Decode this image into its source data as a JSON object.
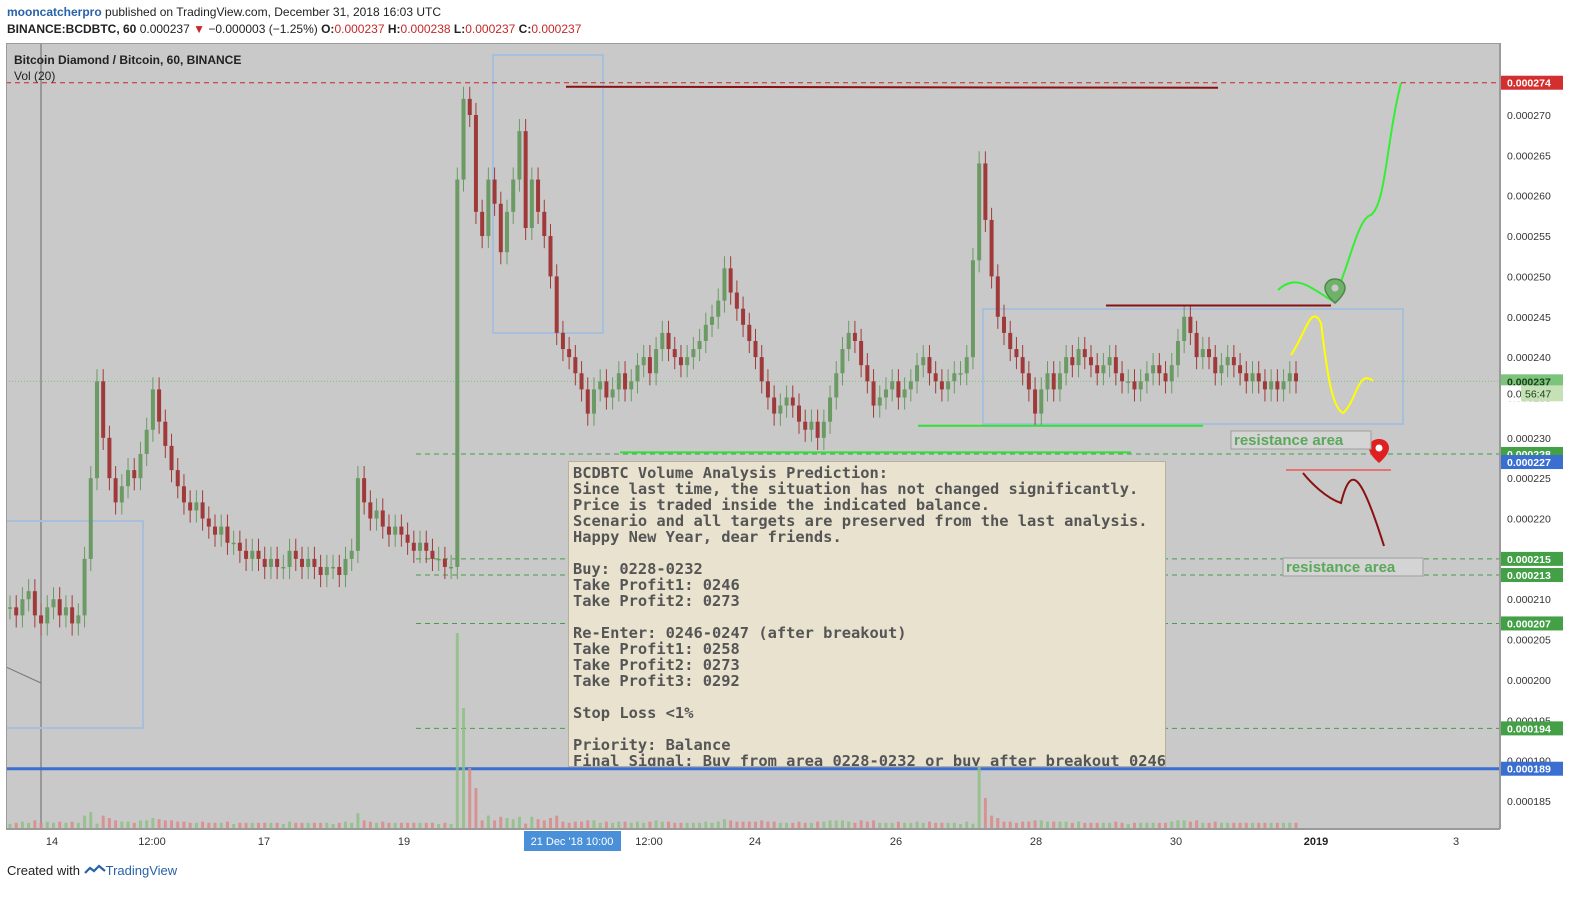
{
  "header": {
    "username": "mooncatcherpro",
    "published": " published on TradingView.com, December 31, 2018 16:03 UTC",
    "ticker": "BINANCE:BCDBTC, 60",
    "last": "0.000237",
    "change": "−0.000003 (−1.25%)",
    "o_label": "O:",
    "o": "0.000237",
    "h_label": "H:",
    "h": "0.000238",
    "l_label": "L:",
    "l": "0.000237",
    "c_label": "C:",
    "c": "0.000237"
  },
  "chart_title": "Bitcoin Diamond / Bitcoin, 60, BINANCE",
  "indicator_label": "Vol (20)",
  "footer": {
    "created": "Created with",
    "brand": "TradingView"
  },
  "note": {
    "lines": [
      "BCDBTC Volume Analysis Prediction:",
      "Since last time, the situation has not changed significantly.",
      "Price is traded inside the indicated balance.",
      "Scenario and all targets are preserved from the last analysis.",
      "Happy New Year, dear friends.",
      "",
      "Buy: 0228-0232",
      "Take Profit1: 0246",
      "Take Profit2: 0273",
      "",
      "Re-Enter: 0246-0247 (after breakout)",
      "Take Profit1: 0258",
      "Take Profit2: 0273",
      "Take Profit3: 0292",
      "",
      "Stop Loss <1%",
      "",
      "Priority: Balance",
      "Final Signal: Buy from area 0228-0232 or buy after breakout 0246"
    ]
  },
  "annotations": {
    "resistance1": "resistance area",
    "resistance2": "resistance area",
    "countdown": "56:47",
    "partial_price": "0.0"
  },
  "colors": {
    "up": "#6b9a64",
    "down": "#a03a3a",
    "level_red": "#c62828",
    "level_green": "#43a047",
    "support_blue": "#3a6fd1",
    "balance_box": "#a8bfdc",
    "green_line": "#33e033",
    "dark_red_line": "#8a1111",
    "yellow_path": "#ffff00",
    "green_path": "#33ee33",
    "current": "#7cc47c"
  },
  "chart_data": {
    "type": "candlestick",
    "title": "Bitcoin Diamond / Bitcoin, 60, BINANCE",
    "ylim": [
      0.000181,
      0.000278
    ],
    "y_ticks": [
      "0.000185",
      "0.000190",
      "0.000195",
      "0.000200",
      "0.000205",
      "0.000210",
      "0.000215",
      "0.000220",
      "0.000225",
      "0.000230",
      "0.000235",
      "0.000240",
      "0.000245",
      "0.000250",
      "0.000255",
      "0.000260",
      "0.000265",
      "0.000270"
    ],
    "x_ticks": [
      "14",
      "12:00",
      "17",
      "19",
      "12:00",
      "24",
      "26",
      "28",
      "30",
      "2019",
      "3"
    ],
    "x_highlight": "21 Dec '18   10:00",
    "price_tags": [
      {
        "label": "0.000274",
        "value": 0.000274,
        "color": "#d32f2f"
      },
      {
        "label": "0.000237",
        "value": 0.000237,
        "color": "#7cc47c"
      },
      {
        "label": "0.000228",
        "value": 0.000228,
        "color": "#43a047"
      },
      {
        "label": "0.000227",
        "value": 0.000227,
        "color": "#3a6fd1"
      },
      {
        "label": "0.000215",
        "value": 0.000215,
        "color": "#43a047"
      },
      {
        "label": "0.000213",
        "value": 0.000213,
        "color": "#43a047"
      },
      {
        "label": "0.000207",
        "value": 0.000207,
        "color": "#43a047"
      },
      {
        "label": "0.000194",
        "value": 0.000194,
        "color": "#43a047"
      },
      {
        "label": "0.000189",
        "value": 0.000189,
        "color": "#3a6fd1"
      }
    ],
    "close_series": [
      0.000209,
      0.000208,
      0.00021,
      0.000211,
      0.000208,
      0.000207,
      0.000209,
      0.00021,
      0.000208,
      0.000209,
      0.000207,
      0.000208,
      0.000215,
      0.000225,
      0.000237,
      0.00023,
      0.000225,
      0.000222,
      0.000224,
      0.000226,
      0.000225,
      0.000228,
      0.000231,
      0.000236,
      0.000232,
      0.000229,
      0.000226,
      0.000224,
      0.000222,
      0.000221,
      0.000222,
      0.00022,
      0.000219,
      0.000218,
      0.000219,
      0.000217,
      0.000217,
      0.000216,
      0.000215,
      0.000216,
      0.000215,
      0.000214,
      0.000215,
      0.000214,
      0.000214,
      0.000216,
      0.000215,
      0.000214,
      0.000215,
      0.000214,
      0.000213,
      0.000214,
      0.000214,
      0.000213,
      0.000215,
      0.000216,
      0.000225,
      0.000222,
      0.00022,
      0.000221,
      0.000219,
      0.000218,
      0.000219,
      0.000218,
      0.000217,
      0.000216,
      0.000217,
      0.000216,
      0.000215,
      0.000215,
      0.000214,
      0.000214,
      0.000262,
      0.000272,
      0.00027,
      0.000258,
      0.000255,
      0.000262,
      0.000259,
      0.000253,
      0.000258,
      0.000262,
      0.000268,
      0.000256,
      0.000262,
      0.000258,
      0.000255,
      0.00025,
      0.000243,
      0.000241,
      0.00024,
      0.000238,
      0.000236,
      0.000233,
      0.000236,
      0.000237,
      0.000235,
      0.000236,
      0.000238,
      0.000236,
      0.000237,
      0.000239,
      0.00024,
      0.000238,
      0.000241,
      0.000243,
      0.000241,
      0.00024,
      0.000239,
      0.00024,
      0.000241,
      0.000242,
      0.000244,
      0.000245,
      0.000247,
      0.000251,
      0.000248,
      0.000246,
      0.000244,
      0.000242,
      0.00024,
      0.000237,
      0.000235,
      0.000233,
      0.000234,
      0.000235,
      0.000234,
      0.000232,
      0.000231,
      0.000232,
      0.00023,
      0.000232,
      0.000235,
      0.000238,
      0.000241,
      0.000243,
      0.000242,
      0.000239,
      0.000237,
      0.000234,
      0.000235,
      0.000236,
      0.000237,
      0.000235,
      0.000236,
      0.000237,
      0.000239,
      0.00024,
      0.000238,
      0.000237,
      0.000236,
      0.000237,
      0.000238,
      0.000238,
      0.00024,
      0.000252,
      0.000264,
      0.000257,
      0.00025,
      0.000245,
      0.000243,
      0.000241,
      0.00024,
      0.000238,
      0.000236,
      0.000233,
      0.000236,
      0.000238,
      0.000236,
      0.000238,
      0.00024,
      0.000239,
      0.000241,
      0.00024,
      0.000239,
      0.000238,
      0.000239,
      0.00024,
      0.000238,
      0.000237,
      0.000237,
      0.000236,
      0.000237,
      0.000238,
      0.000239,
      0.000238,
      0.000237,
      0.000239,
      0.000242,
      0.000245,
      0.000243,
      0.00024,
      0.000241,
      0.00024,
      0.000238,
      0.000239,
      0.00024,
      0.000239,
      0.000238,
      0.000237,
      0.000238,
      0.000237,
      0.000236,
      0.000237,
      0.000236,
      0.000237,
      0.000238,
      0.000237
    ],
    "annotation_lines": [
      {
        "name": "high-resistance",
        "value": 0.0002735
      },
      {
        "name": "balance-top",
        "value": 0.000246
      },
      {
        "name": "balance-bottom",
        "value": 0.000232
      },
      {
        "name": "support-low",
        "value": 0.000228
      }
    ]
  }
}
